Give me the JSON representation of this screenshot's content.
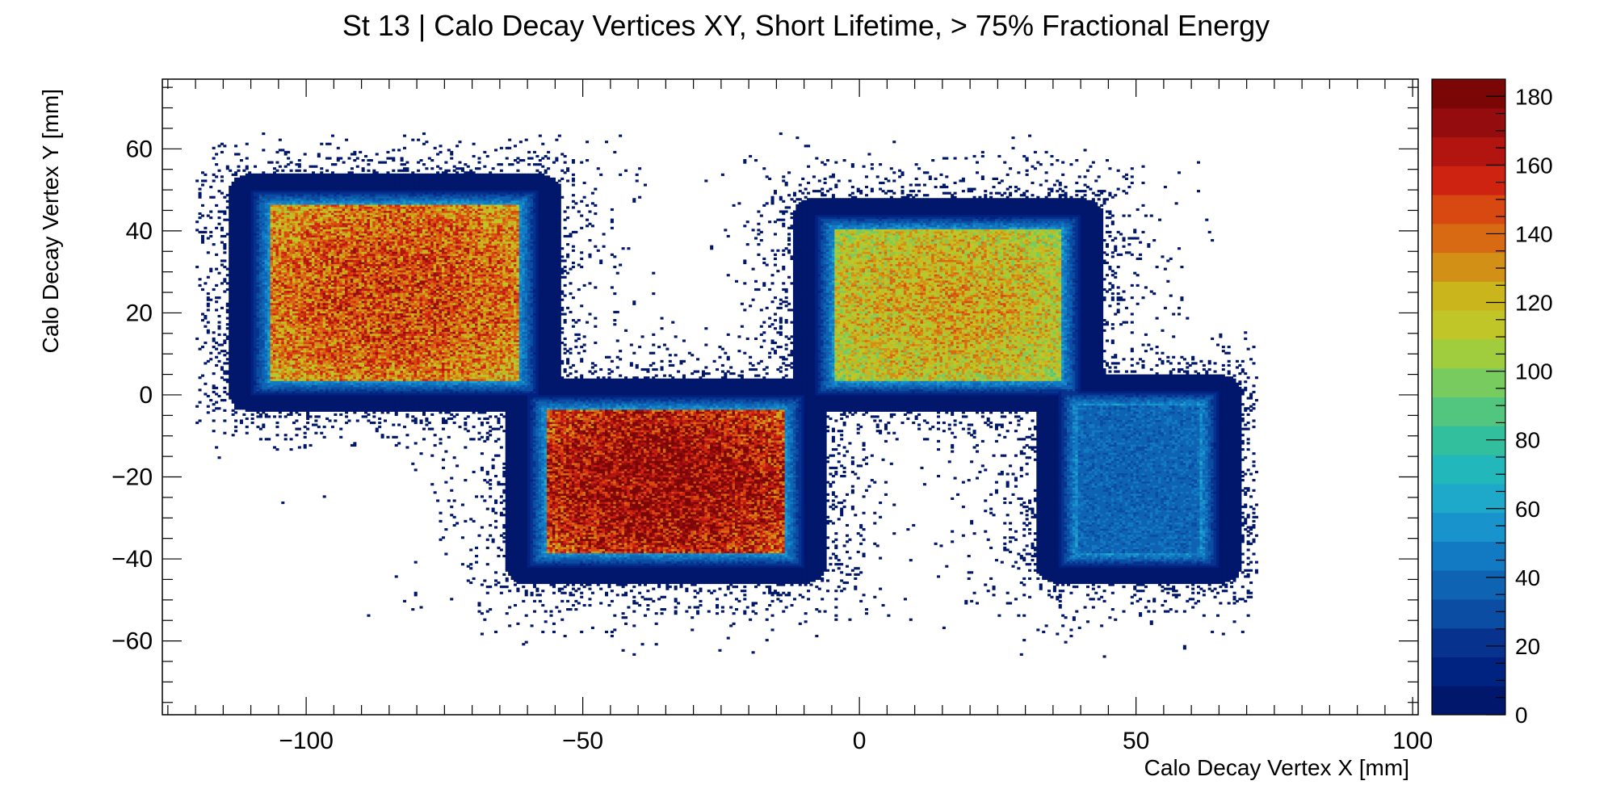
{
  "chart_data": {
    "type": "heatmap",
    "title": "St 13 | Calo Decay Vertices XY, Short Lifetime, > 75% Fractional Energy",
    "xlabel": "Calo Decay Vertex X [mm]",
    "ylabel": "Calo Decay Vertex Y [mm]",
    "xlim": [
      -126,
      101
    ],
    "ylim": [
      -78,
      77
    ],
    "x_ticks": [
      -100,
      -50,
      0,
      50,
      100
    ],
    "y_ticks": [
      -60,
      -40,
      -20,
      0,
      20,
      40,
      60
    ],
    "x_tick_labels": [
      "−100",
      "−50",
      "0",
      "50",
      "100"
    ],
    "y_tick_labels": [
      "−60",
      "−40",
      "−20",
      "0",
      "20",
      "40",
      "60"
    ],
    "colorbar": {
      "min": 0,
      "max": 185,
      "ticks": [
        0,
        20,
        40,
        60,
        80,
        100,
        120,
        140,
        160,
        180
      ],
      "tick_labels": [
        "0",
        "20",
        "40",
        "60",
        "80",
        "100",
        "120",
        "140",
        "160",
        "180"
      ],
      "palette": [
        "#00176b",
        "#002382",
        "#07338f",
        "#0b4da2",
        "#0f63b3",
        "#1279c3",
        "#1893cc",
        "#1ea9cb",
        "#22b7bb",
        "#31bf9d",
        "#52c67f",
        "#78cb5f",
        "#a0cd3e",
        "#c0c627",
        "#cbb51c",
        "#d39017",
        "#d86a14",
        "#d84912",
        "#cf2311",
        "#b21510",
        "#950c0f",
        "#7a0606"
      ]
    },
    "regions": [
      {
        "name": "upper-left-crystal",
        "x": [
          -110,
          -58
        ],
        "y": [
          0,
          50
        ],
        "peak_count": 150
      },
      {
        "name": "lower-middle-crystal",
        "x": [
          -60,
          -10
        ],
        "y": [
          -42,
          0
        ],
        "peak_count": 175
      },
      {
        "name": "upper-right-crystal",
        "x": [
          -8,
          40
        ],
        "y": [
          0,
          44
        ],
        "peak_count": 125
      },
      {
        "name": "lower-right-crystal",
        "x": [
          36,
          65
        ],
        "y": [
          -42,
          1
        ],
        "peak_count": 38
      }
    ]
  }
}
